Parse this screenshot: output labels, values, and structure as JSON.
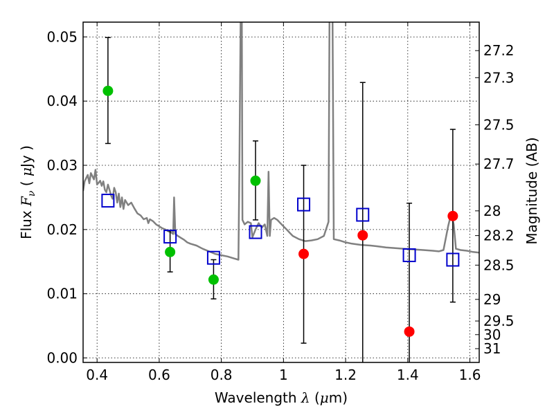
{
  "chart_data": {
    "type": "scatter",
    "xlabel": {
      "prefix": "Wavelength  ",
      "symbol": "λ",
      "suffix": " (",
      "unit_symbol": "μ",
      "unit": "m)"
    },
    "ylabel": {
      "prefix": "Flux  ",
      "symbol": "F",
      "subscript": "ν",
      "suffix": "  ( ",
      "unit_symbol": "μ",
      "unit": "Jy )"
    },
    "y2label": "Magnitude (AB)",
    "xlim": [
      0.355,
      1.63
    ],
    "ylim": [
      -0.0007,
      0.0523
    ],
    "grid": true,
    "grid_style": "dotted",
    "x_ticks": [
      {
        "value": 0.4,
        "label": "0.4"
      },
      {
        "value": 0.6,
        "label": "0.6"
      },
      {
        "value": 0.8,
        "label": "0.8"
      },
      {
        "value": 1.0,
        "label": "1"
      },
      {
        "value": 1.2,
        "label": "1.2"
      },
      {
        "value": 1.4,
        "label": "1.4"
      },
      {
        "value": 1.6,
        "label": "1.6"
      }
    ],
    "y_ticks": [
      {
        "value": 0.0,
        "label": "0.00"
      },
      {
        "value": 0.01,
        "label": "0.01"
      },
      {
        "value": 0.02,
        "label": "0.02"
      },
      {
        "value": 0.03,
        "label": "0.03"
      },
      {
        "value": 0.04,
        "label": "0.04"
      },
      {
        "value": 0.05,
        "label": "0.05"
      }
    ],
    "y2_ticks": [
      {
        "value": 27.2,
        "label": "27.2"
      },
      {
        "value": 27.3,
        "label": "27.3"
      },
      {
        "value": 27.5,
        "label": "27.5"
      },
      {
        "value": 27.7,
        "label": "27.7"
      },
      {
        "value": 28.0,
        "label": "28"
      },
      {
        "value": 28.2,
        "label": "28.2"
      },
      {
        "value": 28.5,
        "label": "28.5"
      },
      {
        "value": 29.0,
        "label": "29"
      },
      {
        "value": 29.5,
        "label": "29.5"
      },
      {
        "value": 30.0,
        "label": "30"
      },
      {
        "value": 31.0,
        "label": "31"
      }
    ],
    "magnitude_zero_point": 23.9,
    "series": [
      {
        "color": "#00c000",
        "marker": "circle",
        "points": [
          {
            "x": 0.435,
            "y": 0.0416,
            "yerr_low": 0.0334,
            "yerr_high": 0.0499
          },
          {
            "x": 0.635,
            "y": 0.0165,
            "yerr_low": 0.0134,
            "yerr_high": 0.0198
          },
          {
            "x": 0.775,
            "y": 0.0122,
            "yerr_low": 0.0092,
            "yerr_high": 0.0153
          },
          {
            "x": 0.91,
            "y": 0.0276,
            "yerr_low": 0.0215,
            "yerr_high": 0.0338
          }
        ]
      },
      {
        "color": "#ff0000",
        "marker": "circle",
        "points": [
          {
            "x": 1.065,
            "y": 0.0162,
            "yerr_low": 0.0023,
            "yerr_high": 0.03
          },
          {
            "x": 1.255,
            "y": 0.0191,
            "yerr_low": -0.0007,
            "yerr_high": 0.0429
          },
          {
            "x": 1.405,
            "y": 0.0041,
            "yerr_low": -0.0007,
            "yerr_high": 0.0241
          },
          {
            "x": 1.545,
            "y": 0.0221,
            "yerr_low": 0.0087,
            "yerr_high": 0.0356
          }
        ]
      },
      {
        "color": "#0000cc",
        "marker": "open-square",
        "points": [
          {
            "x": 0.435,
            "y": 0.0245
          },
          {
            "x": 0.635,
            "y": 0.0189
          },
          {
            "x": 0.775,
            "y": 0.0156
          },
          {
            "x": 0.91,
            "y": 0.0196
          },
          {
            "x": 1.065,
            "y": 0.0239
          },
          {
            "x": 1.255,
            "y": 0.0223
          },
          {
            "x": 1.405,
            "y": 0.016
          },
          {
            "x": 1.545,
            "y": 0.0153
          }
        ]
      }
    ],
    "spectrum": {
      "color": "#808080",
      "type": "line",
      "points": [
        [
          0.355,
          0.026
        ],
        [
          0.36,
          0.0275
        ],
        [
          0.37,
          0.0285
        ],
        [
          0.375,
          0.0272
        ],
        [
          0.38,
          0.0288
        ],
        [
          0.39,
          0.0278
        ],
        [
          0.395,
          0.0293
        ],
        [
          0.4,
          0.027
        ],
        [
          0.41,
          0.0276
        ],
        [
          0.415,
          0.0268
        ],
        [
          0.42,
          0.0275
        ],
        [
          0.425,
          0.0262
        ],
        [
          0.43,
          0.0258
        ],
        [
          0.435,
          0.027
        ],
        [
          0.44,
          0.0262
        ],
        [
          0.445,
          0.0253
        ],
        [
          0.45,
          0.0248
        ],
        [
          0.455,
          0.0265
        ],
        [
          0.46,
          0.0258
        ],
        [
          0.465,
          0.0242
        ],
        [
          0.47,
          0.0256
        ],
        [
          0.475,
          0.0235
        ],
        [
          0.48,
          0.025
        ],
        [
          0.485,
          0.0232
        ],
        [
          0.49,
          0.0246
        ],
        [
          0.5,
          0.0238
        ],
        [
          0.51,
          0.0242
        ],
        [
          0.52,
          0.0233
        ],
        [
          0.53,
          0.0225
        ],
        [
          0.54,
          0.0222
        ],
        [
          0.55,
          0.0216
        ],
        [
          0.56,
          0.0218
        ],
        [
          0.565,
          0.021
        ],
        [
          0.57,
          0.0216
        ],
        [
          0.58,
          0.0213
        ],
        [
          0.59,
          0.0208
        ],
        [
          0.6,
          0.0205
        ],
        [
          0.61,
          0.0202
        ],
        [
          0.62,
          0.02
        ],
        [
          0.63,
          0.0197
        ],
        [
          0.64,
          0.0195
        ],
        [
          0.645,
          0.0193
        ],
        [
          0.648,
          0.025
        ],
        [
          0.652,
          0.0193
        ],
        [
          0.66,
          0.019
        ],
        [
          0.67,
          0.0187
        ],
        [
          0.68,
          0.0184
        ],
        [
          0.69,
          0.018
        ],
        [
          0.7,
          0.0178
        ],
        [
          0.72,
          0.0175
        ],
        [
          0.74,
          0.017
        ],
        [
          0.76,
          0.0166
        ],
        [
          0.78,
          0.0162
        ],
        [
          0.8,
          0.016
        ],
        [
          0.82,
          0.0158
        ],
        [
          0.84,
          0.0155
        ],
        [
          0.855,
          0.0153
        ],
        [
          0.858,
          0.03
        ],
        [
          0.862,
          0.053
        ],
        [
          0.866,
          0.053
        ],
        [
          0.868,
          0.0215
        ],
        [
          0.875,
          0.0208
        ],
        [
          0.885,
          0.0212
        ],
        [
          0.895,
          0.021
        ],
        [
          0.9,
          0.0188
        ],
        [
          0.91,
          0.02
        ],
        [
          0.92,
          0.021
        ],
        [
          0.93,
          0.0203
        ],
        [
          0.94,
          0.0208
        ],
        [
          0.948,
          0.019
        ],
        [
          0.952,
          0.029
        ],
        [
          0.956,
          0.019
        ],
        [
          0.96,
          0.0215
        ],
        [
          0.97,
          0.0218
        ],
        [
          0.98,
          0.0215
        ],
        [
          0.99,
          0.021
        ],
        [
          1.0,
          0.0205
        ],
        [
          1.01,
          0.02
        ],
        [
          1.02,
          0.0195
        ],
        [
          1.03,
          0.019
        ],
        [
          1.05,
          0.0185
        ],
        [
          1.07,
          0.0182
        ],
        [
          1.09,
          0.0183
        ],
        [
          1.11,
          0.0185
        ],
        [
          1.13,
          0.019
        ],
        [
          1.145,
          0.0212
        ],
        [
          1.148,
          0.053
        ],
        [
          1.158,
          0.053
        ],
        [
          1.162,
          0.0185
        ],
        [
          1.18,
          0.0183
        ],
        [
          1.2,
          0.018
        ],
        [
          1.22,
          0.0178
        ],
        [
          1.25,
          0.0176
        ],
        [
          1.28,
          0.0175
        ],
        [
          1.3,
          0.0174
        ],
        [
          1.33,
          0.0172
        ],
        [
          1.36,
          0.0171
        ],
        [
          1.39,
          0.017
        ],
        [
          1.42,
          0.0169
        ],
        [
          1.45,
          0.0168
        ],
        [
          1.48,
          0.0167
        ],
        [
          1.5,
          0.0166
        ],
        [
          1.515,
          0.0168
        ],
        [
          1.53,
          0.0205
        ],
        [
          1.54,
          0.0225
        ],
        [
          1.548,
          0.0208
        ],
        [
          1.555,
          0.017
        ],
        [
          1.57,
          0.0168
        ],
        [
          1.59,
          0.0167
        ],
        [
          1.61,
          0.0165
        ],
        [
          1.63,
          0.0164
        ]
      ]
    }
  }
}
